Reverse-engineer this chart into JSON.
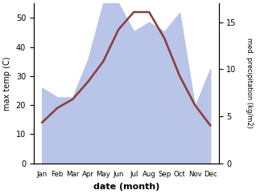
{
  "months": [
    "Jan",
    "Feb",
    "Mar",
    "Apr",
    "May",
    "Jun",
    "Jul",
    "Aug",
    "Sep",
    "Oct",
    "Nov",
    "Dec"
  ],
  "temp": [
    14,
    19,
    22,
    28,
    35,
    46,
    52,
    52,
    43,
    30,
    20,
    13
  ],
  "precip": [
    8,
    7,
    7,
    11,
    17,
    17,
    14,
    15,
    14,
    16,
    6,
    10
  ],
  "temp_color": "#8B3A3A",
  "precip_fill_color": "#b8c4e8",
  "background_color": "#ffffff",
  "ylabel_left": "max temp (C)",
  "ylabel_right": "med. precipitation (kg/m2)",
  "xlabel": "date (month)",
  "ylim_left": [
    0,
    55
  ],
  "ylim_right": [
    0,
    17
  ],
  "yticks_left": [
    0,
    10,
    20,
    30,
    40,
    50
  ],
  "yticks_right": [
    0,
    5,
    10,
    15
  ]
}
